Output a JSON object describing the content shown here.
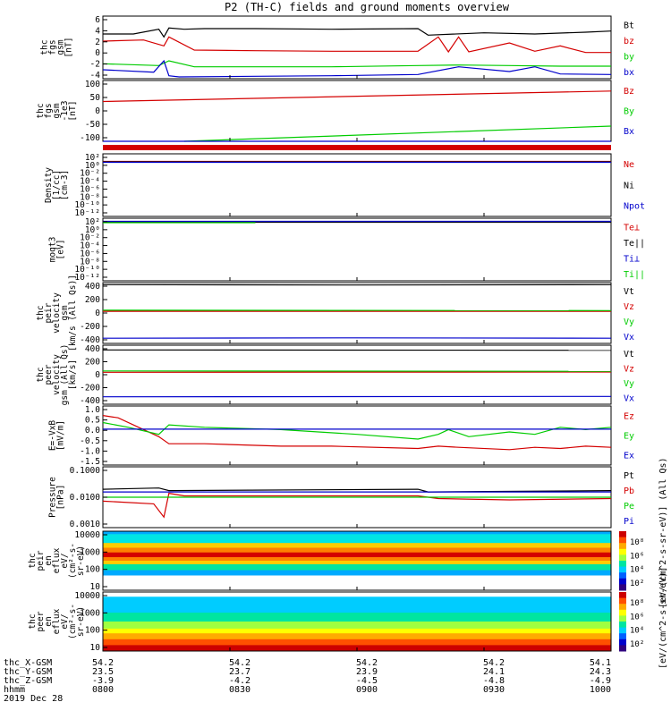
{
  "title": "P2 (TH-C) fields and ground moments overview",
  "colors": {
    "black": "#000000",
    "red": "#d40000",
    "green": "#00cc00",
    "blue": "#0000cc",
    "yellow": "#cccc00",
    "purple": "#aa00aa"
  },
  "chart_data": [
    {
      "type": "line",
      "id": "p1",
      "ylabel": [
        "thc",
        "fgs",
        "gsm",
        "[nT]"
      ],
      "yticks": [
        "6",
        "4",
        "2",
        "0",
        "-2",
        "-4"
      ],
      "ylim": [
        -4,
        6.5
      ],
      "legend": [
        {
          "name": "Bt",
          "color": "black"
        },
        {
          "name": "bz",
          "color": "red"
        },
        {
          "name": "by",
          "color": "green"
        },
        {
          "name": "bx",
          "color": "blue"
        }
      ],
      "series": [
        {
          "name": "Bt",
          "color": "black",
          "x": [
            0,
            0.06,
            0.11,
            0.12,
            0.13,
            0.16,
            0.2,
            0.3,
            0.45,
            0.62,
            0.64,
            0.75,
            0.85,
            0.95,
            1
          ],
          "y": [
            3.5,
            3.5,
            4.3,
            3.0,
            4.5,
            4.3,
            4.4,
            4.4,
            4.3,
            4.4,
            3.3,
            3.7,
            3.5,
            3.8,
            4.0
          ]
        },
        {
          "name": "bz",
          "color": "red",
          "x": [
            0,
            0.08,
            0.12,
            0.13,
            0.18,
            0.3,
            0.45,
            0.62,
            0.66,
            0.68,
            0.7,
            0.72,
            0.8,
            0.85,
            0.9,
            0.95,
            1
          ],
          "y": [
            2.3,
            2.5,
            1.5,
            3.0,
            0.8,
            0.7,
            0.6,
            0.6,
            3.0,
            0.5,
            3.0,
            0.5,
            2.0,
            0.6,
            1.5,
            0.4,
            0.4
          ]
        },
        {
          "name": "by",
          "color": "green",
          "x": [
            0,
            0.11,
            0.13,
            0.18,
            0.3,
            0.45,
            0.62,
            0.7,
            0.8,
            0.9,
            1
          ],
          "y": [
            -1.5,
            -1.8,
            -1.0,
            -2.0,
            -2.0,
            -2.0,
            -1.8,
            -1.7,
            -1.8,
            -1.9,
            -1.9
          ]
        },
        {
          "name": "bx",
          "color": "blue",
          "x": [
            0,
            0.1,
            0.12,
            0.13,
            0.15,
            0.3,
            0.45,
            0.62,
            0.7,
            0.8,
            0.85,
            0.9,
            1
          ],
          "y": [
            -2.5,
            -2.9,
            -1.0,
            -3.5,
            -3.7,
            -3.6,
            -3.5,
            -3.3,
            -2.0,
            -2.8,
            -2.0,
            -3.2,
            -3.3
          ]
        }
      ]
    },
    {
      "type": "line",
      "id": "p2",
      "ylabel": [
        "thc",
        "fgs",
        "gsm",
        "-1e3",
        "[nT]"
      ],
      "yticks": [
        "100",
        "50",
        "0",
        "-50",
        "-100"
      ],
      "ylim": [
        -150,
        110
      ],
      "legend": [
        {
          "name": "Bz",
          "color": "red"
        },
        {
          "name": "By",
          "color": "green"
        },
        {
          "name": "Bx",
          "color": "blue"
        }
      ],
      "series": [
        {
          "name": "Bz",
          "color": "red",
          "x": [
            0,
            1
          ],
          "y": [
            20,
            65
          ]
        },
        {
          "name": "By",
          "color": "green",
          "x": [
            0.16,
            1
          ],
          "y": [
            -150,
            -85
          ]
        },
        {
          "name": "Bx",
          "color": "blue",
          "x": [
            0,
            1
          ],
          "y": [
            -172,
            -172
          ]
        }
      ]
    },
    {
      "type": "line",
      "id": "p3",
      "ylabel": [
        "Density",
        "[1/cc]",
        "[cm-3]"
      ],
      "yticks": [
        "10²",
        "10⁰",
        "10⁻²",
        "10⁻⁴",
        "10⁻⁶",
        "10⁻⁸",
        "10⁻¹⁰",
        "10⁻¹²"
      ],
      "ylim": [
        -12,
        2
      ],
      "legend": [
        {
          "name": "Ne",
          "color": "red"
        },
        {
          "name": "Ni",
          "color": "black"
        },
        {
          "name": "Npot",
          "color": "blue"
        }
      ],
      "series": [
        {
          "name": "Ne",
          "color": "red",
          "x": [
            0,
            1
          ],
          "y": [
            0.3,
            0.3
          ]
        },
        {
          "name": "Ni",
          "color": "black",
          "x": [
            0,
            1
          ],
          "y": [
            0.2,
            0.2
          ]
        },
        {
          "name": "Npot",
          "color": "blue",
          "x": [
            0,
            1
          ],
          "y": [
            0.1,
            0.1
          ]
        }
      ]
    },
    {
      "type": "line",
      "id": "p4",
      "ylabel": [
        "moqt3",
        "[eV]"
      ],
      "yticks": [
        "10²",
        "10⁰",
        "10⁻²",
        "10⁻⁴",
        "10⁻⁶",
        "10⁻⁸",
        "10⁻¹⁰",
        "10⁻¹²"
      ],
      "ylim": [
        -12,
        2
      ],
      "legend": [
        {
          "name": "Te⊥",
          "color": "red"
        },
        {
          "name": "Te||",
          "color": "black"
        },
        {
          "name": "Ti⊥",
          "color": "blue"
        },
        {
          "name": "Ti||",
          "color": "green"
        }
      ],
      "series": [
        {
          "name": "Te⊥",
          "color": "red",
          "x": [
            0,
            1
          ],
          "y": [
            1.2,
            1.2
          ]
        },
        {
          "name": "Te||",
          "color": "black",
          "x": [
            0,
            1
          ],
          "y": [
            1.1,
            1.1
          ]
        },
        {
          "name": "Ti⊥",
          "color": "blue",
          "x": [
            0,
            1
          ],
          "y": [
            1.3,
            1.3
          ]
        },
        {
          "name": "Ti||",
          "color": "green",
          "x": [
            0,
            0.3
          ],
          "y": [
            1.0,
            1.0
          ]
        }
      ]
    },
    {
      "type": "line",
      "id": "p5",
      "ylabel": [
        "thc",
        "peir",
        "velocity",
        "gsm",
        "[km/s (All Qs)]"
      ],
      "yticks": [
        "400",
        "200",
        "0",
        "-200",
        "-400"
      ],
      "ylim": [
        -460,
        420
      ],
      "legend": [
        {
          "name": "Vt",
          "color": "black"
        },
        {
          "name": "Vz",
          "color": "red"
        },
        {
          "name": "Vy",
          "color": "green"
        },
        {
          "name": "Vx",
          "color": "blue"
        }
      ],
      "series": [
        {
          "name": "Vt",
          "color": "black",
          "x": [
            0,
            0.5,
            1
          ],
          "y": [
            390,
            385,
            390
          ]
        },
        {
          "name": "Vz",
          "color": "red",
          "x": [
            0,
            1
          ],
          "y": [
            5,
            5
          ]
        },
        {
          "name": "Vy",
          "color": "green",
          "x": [
            0,
            1
          ],
          "y": [
            20,
            15
          ]
        },
        {
          "name": "Vx",
          "color": "blue",
          "x": [
            0,
            0.5,
            1
          ],
          "y": [
            -385,
            -380,
            -385
          ]
        }
      ]
    },
    {
      "type": "line",
      "id": "p6",
      "ylabel": [
        "thc",
        "peer",
        "velocity",
        "gsm (All Qs)",
        "[km/s]"
      ],
      "yticks": [
        "400",
        "200",
        "0",
        "-200",
        "-400"
      ],
      "ylim": [
        -450,
        420
      ],
      "legend": [
        {
          "name": "Vt",
          "color": "black"
        },
        {
          "name": "Vz",
          "color": "red"
        },
        {
          "name": "Vy",
          "color": "green"
        },
        {
          "name": "Vx",
          "color": "blue"
        }
      ],
      "series": [
        {
          "name": "Vt",
          "color": "black",
          "x": [
            0,
            1
          ],
          "y": [
            350,
            345
          ]
        },
        {
          "name": "Vz",
          "color": "red",
          "x": [
            0,
            1
          ],
          "y": [
            20,
            25
          ]
        },
        {
          "name": "Vy",
          "color": "green",
          "x": [
            0,
            1
          ],
          "y": [
            40,
            35
          ]
        },
        {
          "name": "Vx",
          "color": "blue",
          "x": [
            0,
            1
          ],
          "y": [
            -340,
            -335
          ]
        }
      ]
    },
    {
      "type": "line",
      "id": "p7",
      "ylabel": [
        "E=-VxB",
        "[mV/m]"
      ],
      "yticks": [
        "1.0",
        "0.5",
        "0.0",
        "-0.5",
        "-1.0",
        "-1.5"
      ],
      "ylim": [
        -1.5,
        1.0
      ],
      "legend": [
        {
          "name": "Ez",
          "color": "red"
        },
        {
          "name": "Ey",
          "color": "green"
        },
        {
          "name": "Ex",
          "color": "blue"
        }
      ],
      "series": [
        {
          "name": "Ez",
          "color": "red",
          "x": [
            0,
            0.03,
            0.11,
            0.13,
            0.2,
            0.35,
            0.45,
            0.62,
            0.66,
            0.7,
            0.8,
            0.85,
            0.9,
            0.95,
            1
          ],
          "y": [
            0.6,
            0.5,
            -0.3,
            -0.6,
            -0.6,
            -0.7,
            -0.7,
            -0.8,
            -0.7,
            -0.75,
            -0.85,
            -0.75,
            -0.8,
            -0.7,
            -0.75
          ]
        },
        {
          "name": "Ey",
          "color": "green",
          "x": [
            0,
            0.05,
            0.11,
            0.13,
            0.2,
            0.35,
            0.5,
            0.62,
            0.66,
            0.68,
            0.72,
            0.8,
            0.85,
            0.9,
            0.95,
            1
          ],
          "y": [
            0.3,
            0.1,
            -0.2,
            0.2,
            0.1,
            0.0,
            -0.2,
            -0.4,
            -0.2,
            0.0,
            -0.3,
            -0.1,
            -0.2,
            0.1,
            0.0,
            0.1
          ]
        },
        {
          "name": "Ex",
          "color": "blue",
          "x": [
            0,
            1
          ],
          "y": [
            0.02,
            0.02
          ]
        }
      ]
    },
    {
      "type": "line",
      "id": "p8",
      "ylabel": [
        "Pressure",
        "[nPa]"
      ],
      "yticks": [
        "0.1000",
        "0.0100",
        "0.0010"
      ],
      "ylim": [
        -3.3,
        -1
      ],
      "legend": [
        {
          "name": "Pt",
          "color": "black"
        },
        {
          "name": "Pb",
          "color": "red"
        },
        {
          "name": "Pe",
          "color": "green"
        },
        {
          "name": "Pi",
          "color": "blue"
        }
      ],
      "series": [
        {
          "name": "Pt",
          "color": "black",
          "x": [
            0,
            0.11,
            0.13,
            0.62,
            0.64,
            1
          ],
          "y": [
            -1.85,
            -1.8,
            -1.9,
            -1.85,
            -1.95,
            -1.9
          ]
        },
        {
          "name": "Pb",
          "color": "red",
          "x": [
            0,
            0.1,
            0.12,
            0.13,
            0.16,
            0.62,
            0.66,
            0.8,
            1
          ],
          "y": [
            -2.3,
            -2.4,
            -2.9,
            -2.0,
            -2.1,
            -2.1,
            -2.2,
            -2.25,
            -2.2
          ]
        },
        {
          "name": "Pe",
          "color": "green",
          "x": [
            0,
            1
          ],
          "y": [
            -2.15,
            -2.15
          ]
        },
        {
          "name": "Pi",
          "color": "blue",
          "x": [
            0,
            1
          ],
          "y": [
            -1.95,
            -1.95
          ]
        }
      ]
    },
    {
      "type": "heatmap",
      "id": "p9",
      "ylabel": [
        "thc",
        "peir",
        "en",
        "eflux",
        "eV/",
        "(cm²-s-",
        "sr-eV)"
      ],
      "yticks": [
        "10000",
        "1000",
        "100",
        "10"
      ],
      "ylim": [
        0.8,
        4.4
      ],
      "colorbar_label": "[eV/(cm^2-s-sr-eV)] (All Qs)",
      "colorbar_ticks": [
        "10⁸",
        "10⁶",
        "10⁴",
        "10²"
      ]
    },
    {
      "type": "heatmap",
      "id": "p10",
      "ylabel": [
        "thc",
        "peer",
        "en",
        "eflux",
        "eV/",
        "(cm²-s-",
        "sr-eV)"
      ],
      "yticks": [
        "10000",
        "1000",
        "100",
        "10"
      ],
      "ylim": [
        0.7,
        4.3
      ],
      "colorbar_label": "[eV/(cm^2-s-sr-eV)]",
      "colorbar_ticks": [
        "10⁸",
        "10⁶",
        "10⁴",
        "10²"
      ]
    }
  ],
  "footer": {
    "rows": [
      {
        "label": "thc_X-GSM",
        "values": [
          "54.2",
          "54.2",
          "54.2",
          "54.2",
          "54.1"
        ]
      },
      {
        "label": "thc_Y-GSM",
        "values": [
          "23.5",
          "23.7",
          "23.9",
          "24.1",
          "24.3"
        ]
      },
      {
        "label": "thc_Z-GSM",
        "values": [
          "-3.9",
          "-4.2",
          "-4.5",
          "-4.8",
          "-4.9"
        ]
      },
      {
        "label": "hhmm",
        "values": [
          "0800",
          "0830",
          "0900",
          "0930",
          "1000"
        ]
      }
    ],
    "date": "2019 Dec 28"
  }
}
